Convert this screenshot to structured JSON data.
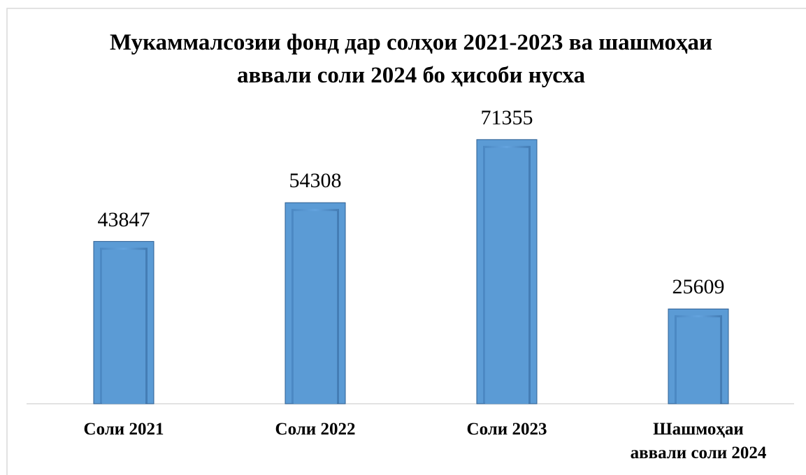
{
  "chart_data": {
    "type": "bar",
    "title": "Мукаммалсозии фонд дар солҳои 2021-2023 ва шашмоҳаи аввали соли 2024 бо ҳисоби нусха",
    "categories": [
      "Соли 2021",
      "Соли 2022",
      "Соли 2023",
      "Шашмоҳаи аввали соли 2024"
    ],
    "values": [
      43847,
      54308,
      71355,
      25609
    ],
    "color": "#5b9bd5",
    "ylim": [
      0,
      80000
    ]
  }
}
